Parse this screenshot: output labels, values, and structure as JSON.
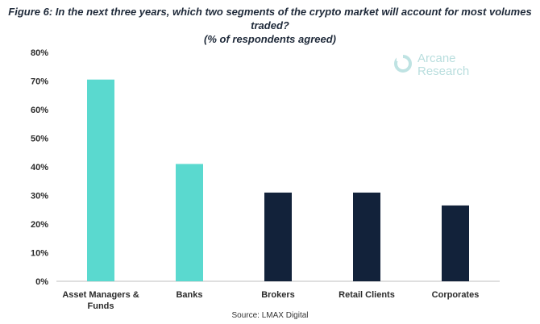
{
  "title_line1": "Figure 6: In the next three years, which two segments of the crypto market will account for most volumes traded?",
  "title_line2": "(% of respondents agreed)",
  "source": "Source: LMAX Digital",
  "watermark": {
    "line1": "Arcane",
    "line2": "Research",
    "icon": "arcane-logo-icon"
  },
  "colors": {
    "highlight": "#5ad9cf",
    "dark": "#12223a"
  },
  "chart_data": {
    "type": "bar",
    "categories": [
      [
        "Asset Managers &",
        "Funds"
      ],
      [
        "Banks"
      ],
      [
        "Brokers"
      ],
      [
        "Retail Clients"
      ],
      [
        "Corporates"
      ]
    ],
    "values": [
      70.5,
      41,
      31,
      31,
      26.5
    ],
    "bar_colors": [
      "#5ad9cf",
      "#5ad9cf",
      "#12223a",
      "#12223a",
      "#12223a"
    ],
    "ylim": [
      0,
      80
    ],
    "yticks": [
      0,
      10,
      20,
      30,
      40,
      50,
      60,
      70,
      80
    ],
    "ytick_labels": [
      "0%",
      "10%",
      "20%",
      "30%",
      "40%",
      "50%",
      "60%",
      "70%",
      "80%"
    ],
    "grid": false,
    "legend": "none"
  }
}
